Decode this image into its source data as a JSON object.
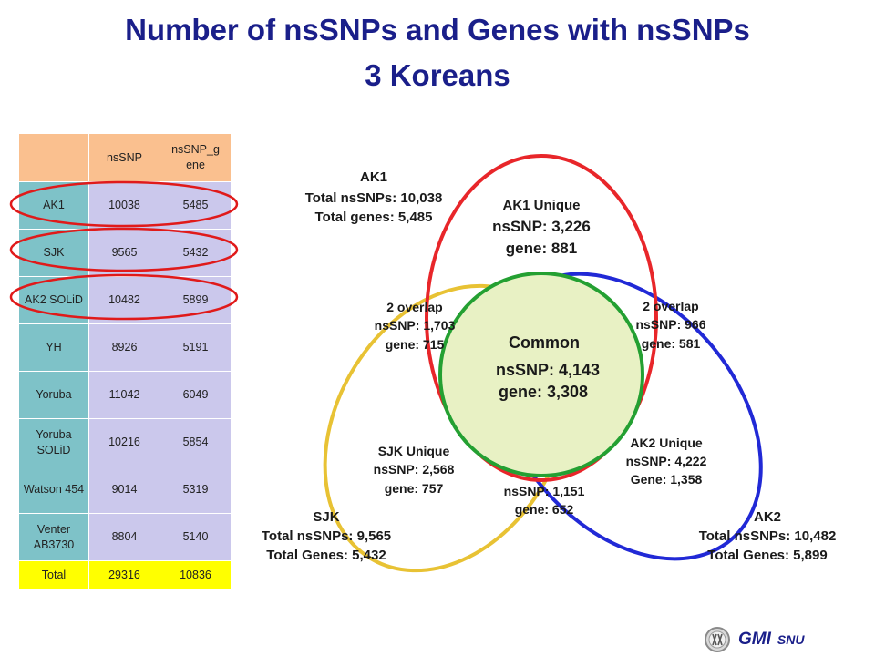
{
  "title": {
    "line1": "Number of nsSNPs and Genes with nsSNPs",
    "line2": "3 Koreans"
  },
  "table": {
    "headers": [
      "",
      "nsSNP",
      "nsSNP_g ene"
    ],
    "rows": [
      {
        "name": "AK1",
        "nssnp": "10038",
        "gene": "5485",
        "circled": true
      },
      {
        "name": "SJK",
        "nssnp": "9565",
        "gene": "5432",
        "circled": true
      },
      {
        "name": "AK2 SOLiD",
        "nssnp": "10482",
        "gene": "5899",
        "circled": true
      },
      {
        "name": "YH",
        "nssnp": "8926",
        "gene": "5191",
        "circled": false
      },
      {
        "name": "Yoruba",
        "nssnp": "11042",
        "gene": "6049",
        "circled": false
      },
      {
        "name": "Yoruba SOLiD",
        "nssnp": "10216",
        "gene": "5854",
        "circled": false
      },
      {
        "name": "Watson 454",
        "nssnp": "9014",
        "gene": "5319",
        "circled": false
      },
      {
        "name": "Venter AB3730",
        "nssnp": "8804",
        "gene": "5140",
        "circled": false
      }
    ],
    "total": {
      "name": "Total",
      "nssnp": "29316",
      "gene": "10836"
    }
  },
  "venn": {
    "colors": {
      "ak1": "#e8262a",
      "sjk": "#e8c234",
      "ak2": "#2129d6",
      "common_stroke": "#24a032",
      "common_fill": "#e8f1c4"
    },
    "ak1": {
      "name": "AK1",
      "total_nssnps": "Total nsSNPs: 10,038",
      "total_genes": "Total genes: 5,485"
    },
    "sjk": {
      "name": "SJK",
      "total_nssnps": "Total nsSNPs: 9,565",
      "total_genes": "Total Genes: 5,432"
    },
    "ak2": {
      "name": "AK2",
      "total_nssnps": "Total nsSNPs: 10,482",
      "total_genes": "Total Genes: 5,899"
    },
    "ak1_unique": {
      "title": "AK1 Unique",
      "nssnp": "nsSNP: 3,226",
      "gene": "gene: 881"
    },
    "overlap_left": {
      "title": "2 overlap",
      "nssnp": "nsSNP: 1,703",
      "gene": "gene: 715"
    },
    "overlap_right": {
      "title": "2 overlap",
      "nssnp": "nsSNP: 966",
      "gene": "gene: 581"
    },
    "common": {
      "title": "Common",
      "nssnp": "nsSNP: 4,143",
      "gene": "gene: 3,308"
    },
    "sjk_unique": {
      "title": "SJK Unique",
      "nssnp": "nsSNP: 2,568",
      "gene": "gene: 757"
    },
    "ak2_unique": {
      "title": "AK2 Unique",
      "nssnp": "nsSNP: 4,222",
      "gene": "Gene: 1,358"
    },
    "overlap_bottom": {
      "nssnp": "nsSNP: 1,151",
      "gene": "gene: 652"
    }
  },
  "logo": {
    "main": "GMI",
    "sub": "SNU",
    "icon": "chromosome-emblem-icon"
  }
}
